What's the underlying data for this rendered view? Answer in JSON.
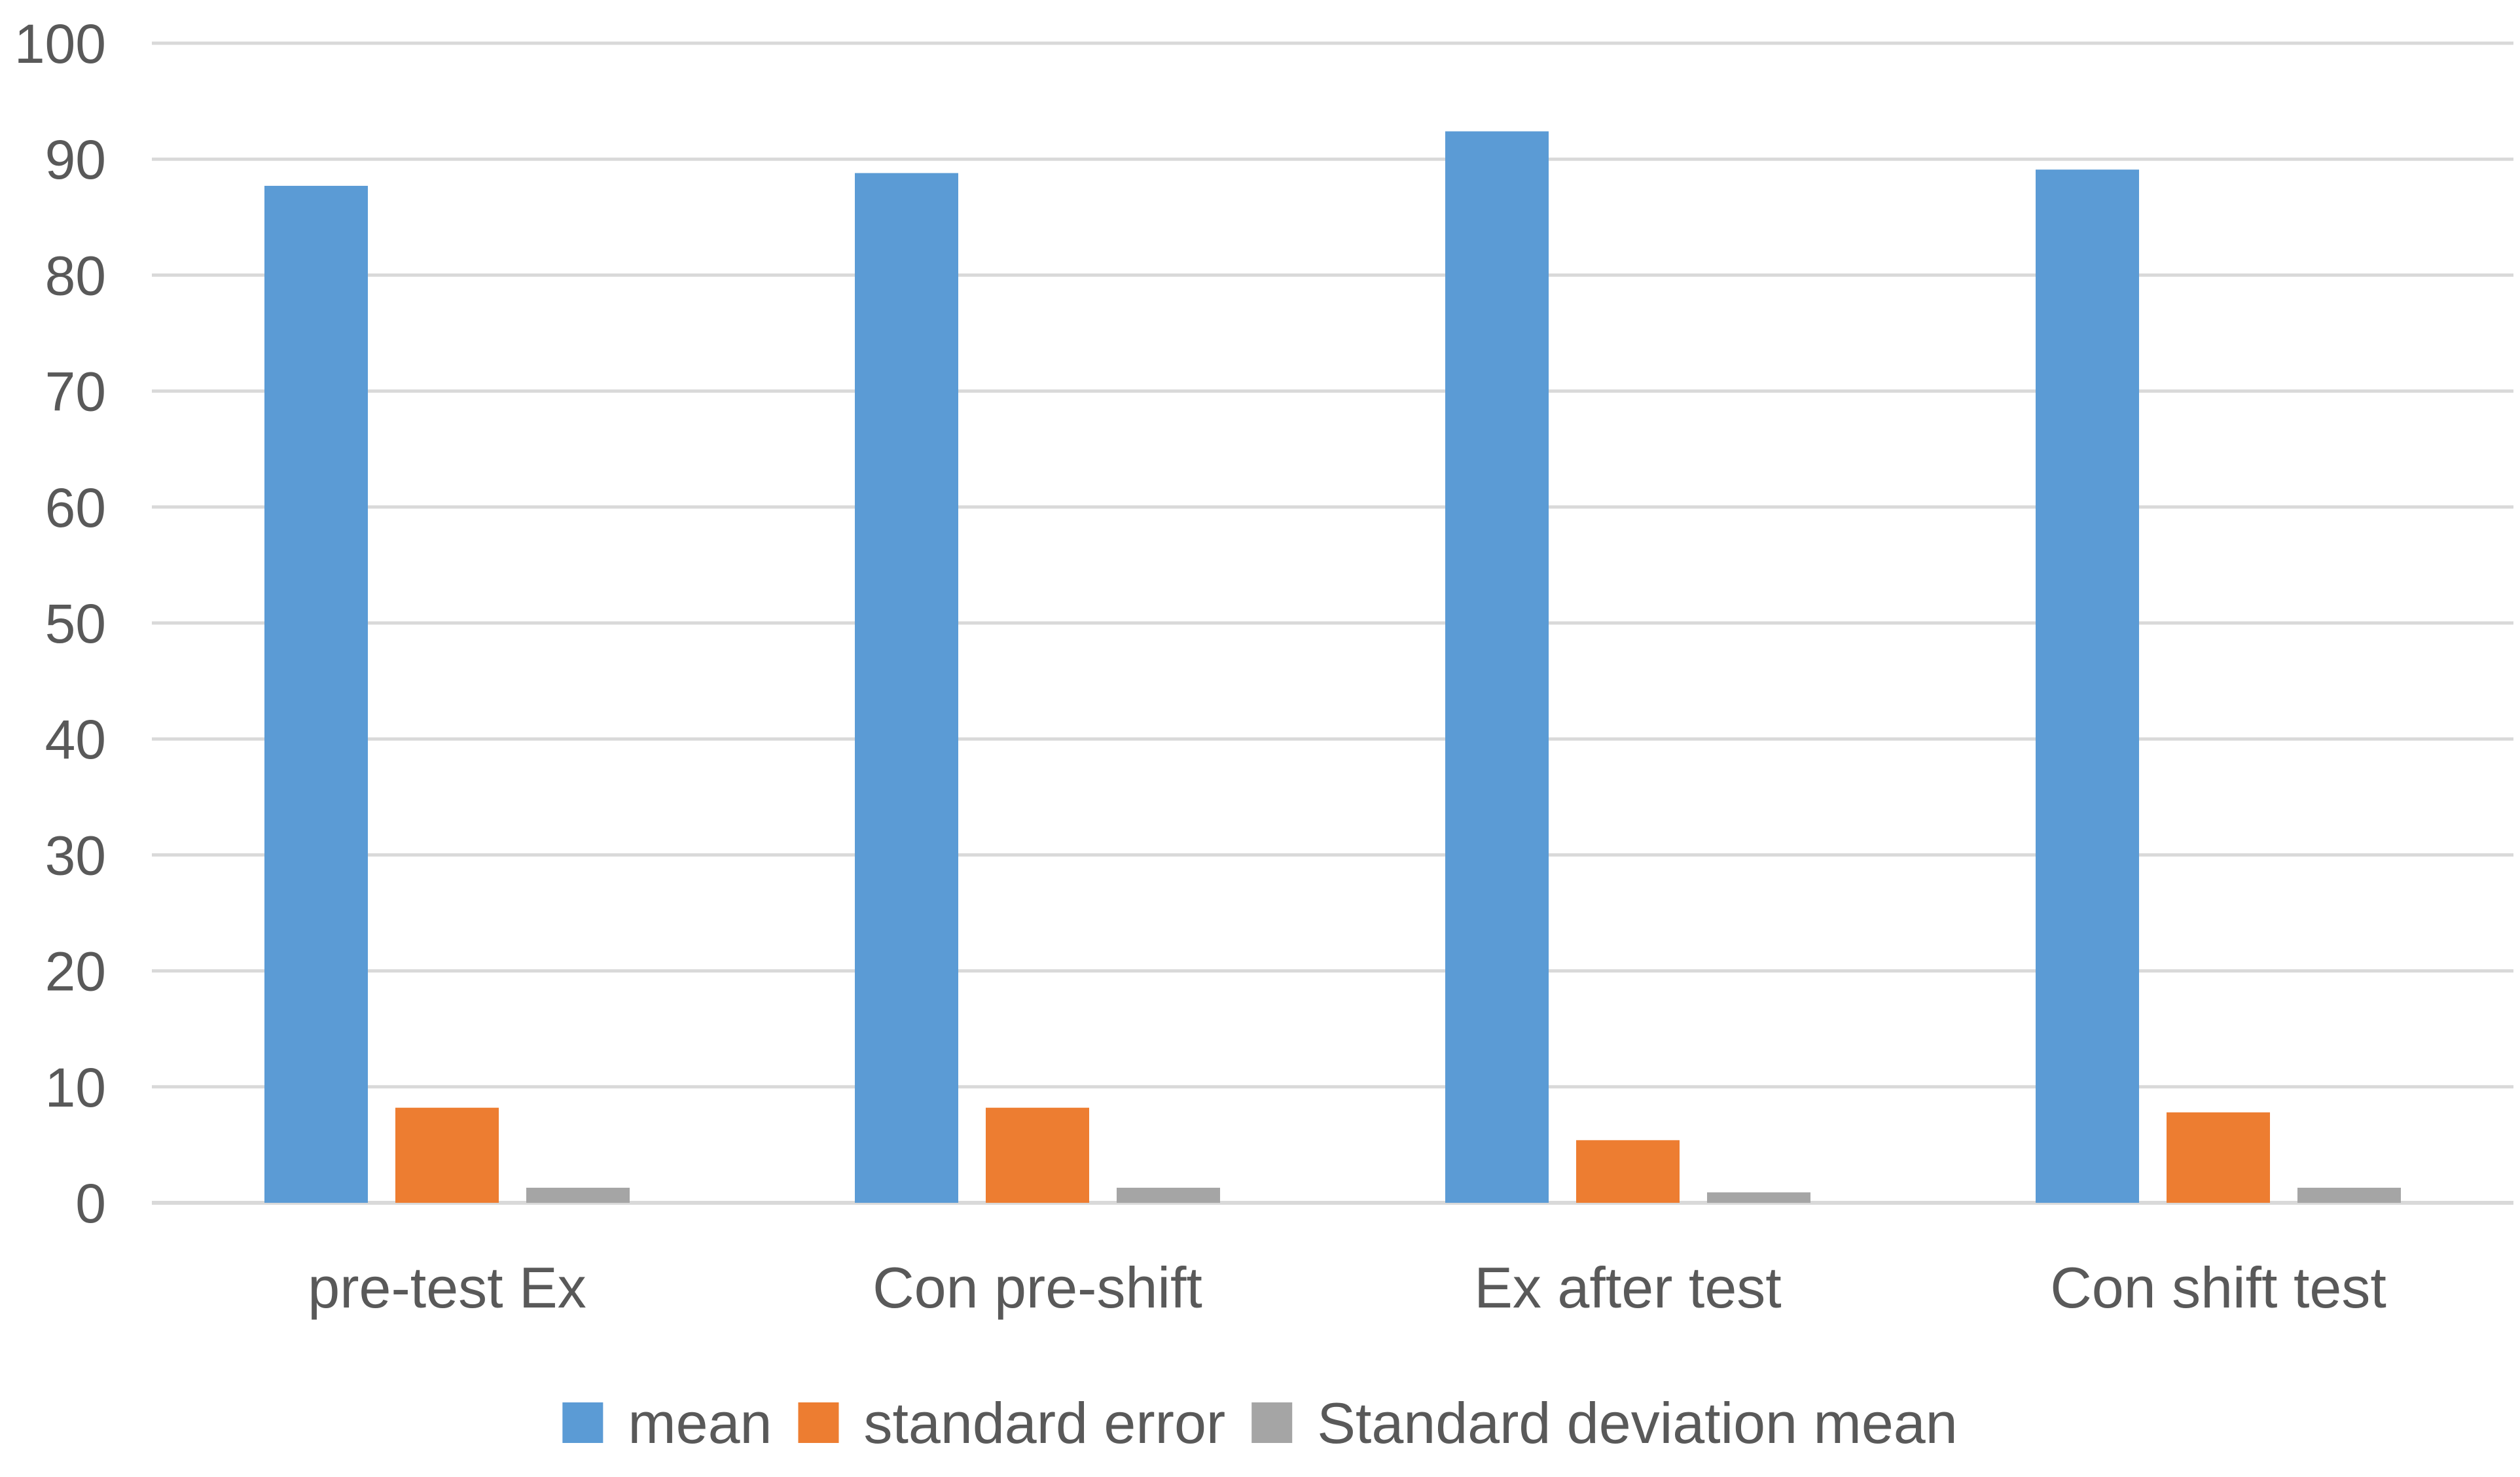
{
  "chart_data": {
    "type": "bar",
    "title": "",
    "xlabel": "",
    "ylabel": "",
    "ylim": [
      0,
      100
    ],
    "yticks": [
      "0",
      "10",
      "20",
      "30",
      "40",
      "50",
      "60",
      "70",
      "80",
      "90",
      "100"
    ],
    "grid": true,
    "legend_position": "bottom",
    "categories": [
      "pre-test Ex",
      "Con pre-shift",
      "Ex after test",
      "Con shift test"
    ],
    "series": [
      {
        "name": "mean",
        "color": "#5B9BD5",
        "values": [
          87.7,
          88.8,
          92.4,
          89.1
        ]
      },
      {
        "name": "standard error",
        "color": "#ED7D31",
        "values": [
          8.2,
          8.2,
          5.4,
          7.8
        ]
      },
      {
        "name": "Standard deviation mean",
        "color": "#A5A5A5",
        "values": [
          1.3,
          1.3,
          0.9,
          1.3
        ]
      }
    ]
  }
}
